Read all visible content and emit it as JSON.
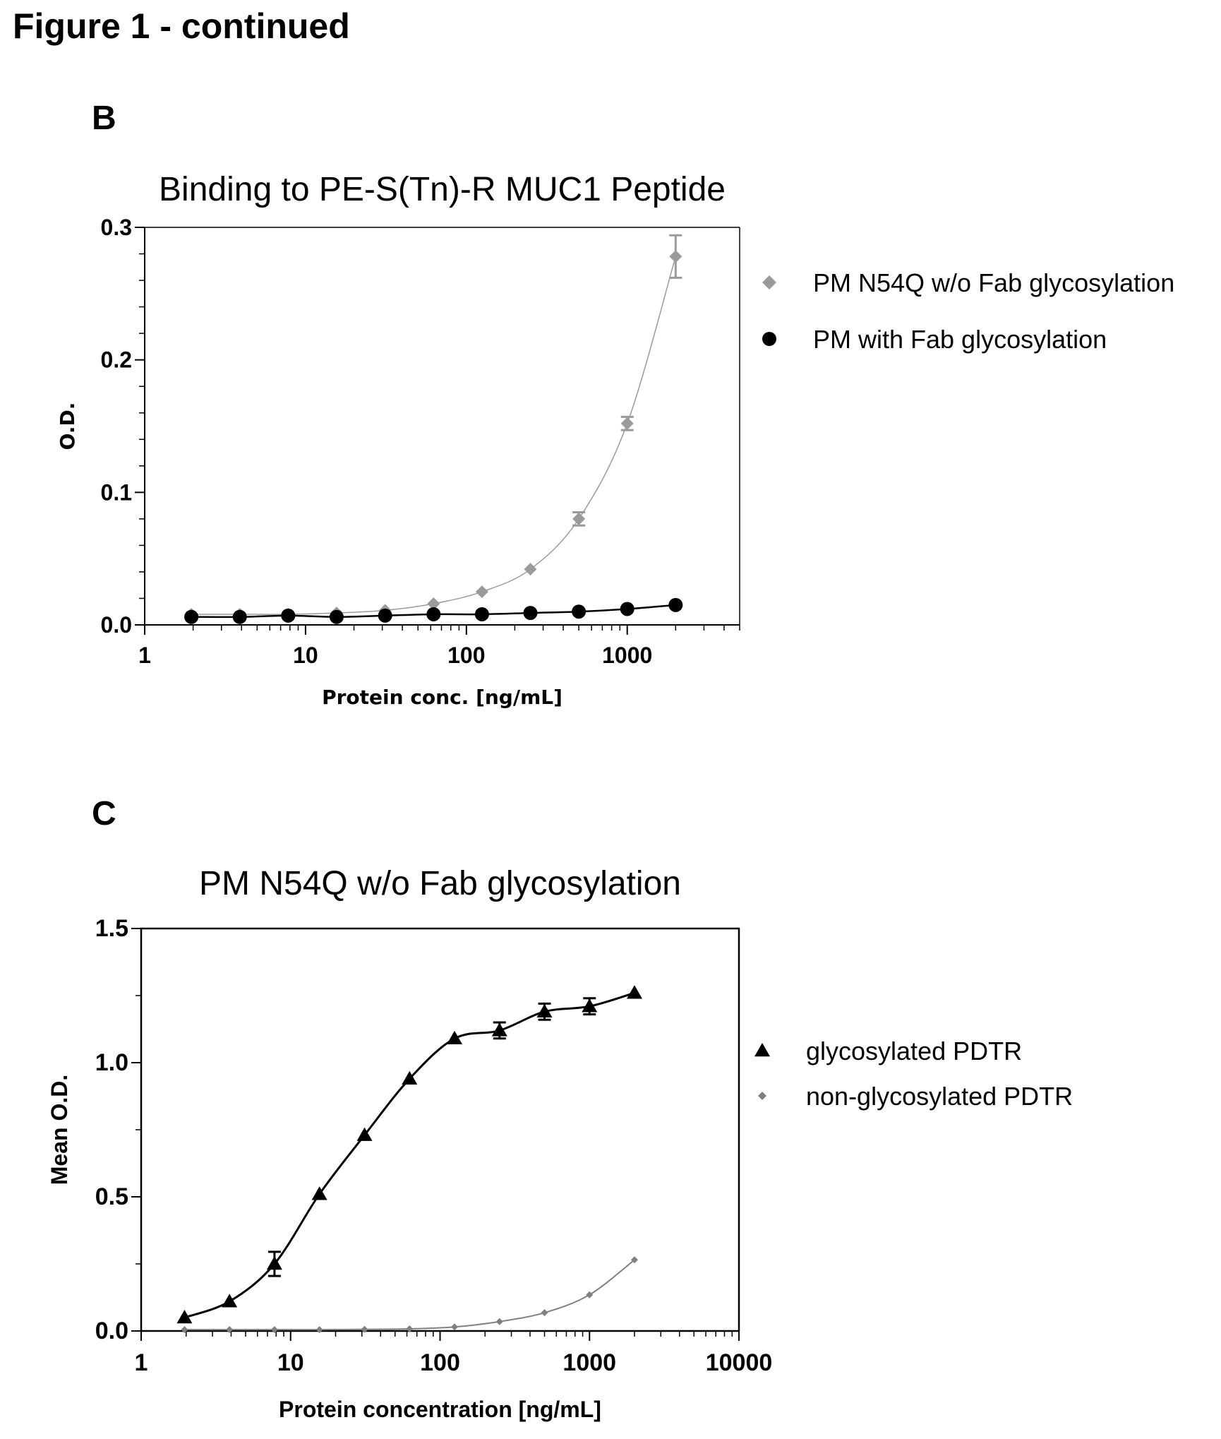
{
  "figure": {
    "title": "Figure 1 - continued",
    "panel_b_label": "B",
    "panel_c_label": "C"
  },
  "chart_data": [
    {
      "panel": "B",
      "type": "scatter",
      "title": "Binding to PE-S(Tn)-R MUC1 Peptide",
      "xlabel": "Protein conc. [ng/mL]",
      "ylabel": "O.D.",
      "xscale": "log",
      "xlim": [
        1,
        5000
      ],
      "ylim": [
        0,
        0.3
      ],
      "xticks": [
        "1",
        "10",
        "100",
        "1000"
      ],
      "yticks": [
        "0.0",
        "0.1",
        "0.2",
        "0.3"
      ],
      "grid": false,
      "legend_position": "right",
      "series": [
        {
          "name": "PM N54Q w/o Fab glycosylation",
          "marker": "diamond",
          "color": "#9a9a9a",
          "x": [
            1.95,
            3.9,
            7.8,
            15.6,
            31.25,
            62.5,
            125,
            250,
            500,
            1000,
            2000
          ],
          "y": [
            0.008,
            0.008,
            0.008,
            0.009,
            0.011,
            0.016,
            0.025,
            0.042,
            0.08,
            0.152,
            0.278
          ],
          "error": [
            0,
            0,
            0,
            0,
            0,
            0,
            0,
            0,
            0.005,
            0.005,
            0.016
          ]
        },
        {
          "name": "PM with Fab glycosylation",
          "marker": "circle",
          "color": "#000000",
          "x": [
            1.95,
            3.9,
            7.8,
            15.6,
            31.25,
            62.5,
            125,
            250,
            500,
            1000,
            2000
          ],
          "y": [
            0.006,
            0.006,
            0.007,
            0.006,
            0.007,
            0.008,
            0.008,
            0.009,
            0.01,
            0.012,
            0.015
          ],
          "error": [
            0,
            0,
            0,
            0,
            0,
            0,
            0,
            0,
            0,
            0,
            0
          ]
        }
      ]
    },
    {
      "panel": "C",
      "type": "scatter",
      "title": "PM N54Q w/o Fab glycosylation",
      "xlabel": "Protein concentration [ng/mL]",
      "ylabel": "Mean O.D.",
      "xscale": "log",
      "xlim": [
        1,
        10000
      ],
      "ylim": [
        0,
        1.5
      ],
      "xticks": [
        "1",
        "10",
        "100",
        "1000",
        "10000"
      ],
      "yticks": [
        "0.0",
        "0.5",
        "1.0",
        "1.5"
      ],
      "grid": false,
      "legend_position": "right",
      "series": [
        {
          "name": "glycosylated PDTR",
          "marker": "triangle",
          "color": "#000000",
          "x": [
            1.95,
            3.9,
            7.8,
            15.6,
            31.25,
            62.5,
            125,
            250,
            500,
            1000,
            2000
          ],
          "y": [
            0.05,
            0.11,
            0.25,
            0.51,
            0.73,
            0.94,
            1.09,
            1.12,
            1.19,
            1.21,
            1.26
          ],
          "error": [
            0,
            0,
            0.045,
            0,
            0,
            0,
            0,
            0.03,
            0.03,
            0.03,
            0
          ]
        },
        {
          "name": "non-glycosylated PDTR",
          "marker": "diamond",
          "color": "#808080",
          "x": [
            1.95,
            3.9,
            7.8,
            15.6,
            31.25,
            62.5,
            125,
            250,
            500,
            1000,
            2000
          ],
          "y": [
            0.005,
            0.005,
            0.005,
            0.005,
            0.006,
            0.008,
            0.015,
            0.035,
            0.068,
            0.135,
            0.265
          ],
          "error": [
            0,
            0,
            0,
            0,
            0,
            0,
            0,
            0,
            0,
            0,
            0
          ]
        }
      ]
    }
  ]
}
